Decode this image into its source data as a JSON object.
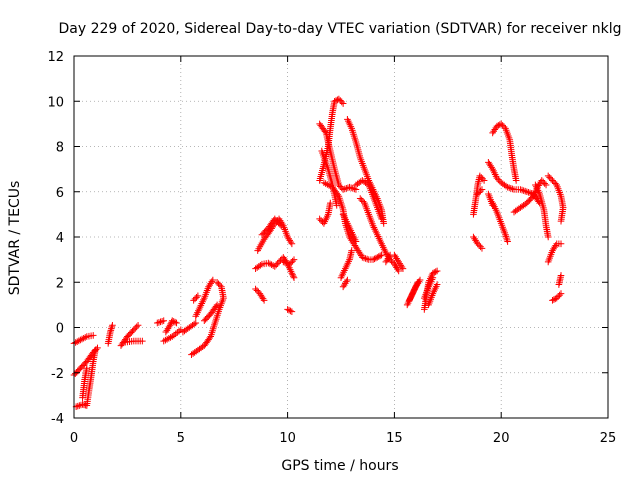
{
  "chart_data": {
    "type": "scatter",
    "title": "Day 229 of 2020, Sidereal Day-to-day VTEC variation (SDTVAR) for receiver nklg",
    "xlabel": "GPS time / hours",
    "ylabel": "SDTVAR / TECUs",
    "xlim": [
      0,
      25
    ],
    "ylim": [
      -4,
      12
    ],
    "xticks": [
      0,
      5,
      10,
      15,
      20,
      25
    ],
    "yticks": [
      -4,
      -2,
      0,
      2,
      4,
      6,
      8,
      10,
      12
    ],
    "grid": true,
    "marker": "+",
    "color": "#ff0000",
    "series": [
      {
        "name": "SDTVAR",
        "tracks": [
          [
            [
              0.0,
              -0.7
            ],
            [
              0.3,
              -0.55
            ],
            [
              0.6,
              -0.4
            ],
            [
              0.9,
              -0.35
            ]
          ],
          [
            [
              0.0,
              -2.1
            ],
            [
              0.3,
              -1.8
            ],
            [
              0.6,
              -1.5
            ],
            [
              0.9,
              -1.1
            ],
            [
              1.1,
              -0.9
            ]
          ],
          [
            [
              0.1,
              -3.5
            ],
            [
              0.4,
              -3.4
            ],
            [
              0.6,
              -3.45
            ],
            [
              0.7,
              -2.8
            ],
            [
              0.8,
              -2.2
            ],
            [
              0.9,
              -1.5
            ],
            [
              1.0,
              -1.0
            ]
          ],
          [
            [
              0.4,
              -3.1
            ],
            [
              0.5,
              -2.3
            ],
            [
              0.6,
              -1.8
            ]
          ],
          [
            [
              1.6,
              -0.7
            ],
            [
              1.7,
              -0.2
            ],
            [
              1.8,
              0.1
            ]
          ],
          [
            [
              2.2,
              -0.8
            ],
            [
              2.5,
              -0.4
            ],
            [
              2.8,
              -0.1
            ],
            [
              3.0,
              0.1
            ]
          ],
          [
            [
              2.4,
              -0.65
            ],
            [
              2.8,
              -0.6
            ],
            [
              3.2,
              -0.6
            ]
          ],
          [
            [
              3.9,
              0.2
            ],
            [
              4.2,
              0.3
            ]
          ],
          [
            [
              4.3,
              -0.2
            ],
            [
              4.5,
              0.1
            ],
            [
              4.6,
              0.3
            ],
            [
              4.8,
              0.2
            ]
          ],
          [
            [
              5.1,
              -0.2
            ],
            [
              5.4,
              0.0
            ],
            [
              5.7,
              0.2
            ]
          ],
          [
            [
              4.2,
              -0.6
            ],
            [
              4.6,
              -0.4
            ],
            [
              5.0,
              -0.1
            ]
          ],
          [
            [
              5.7,
              0.5
            ],
            [
              5.9,
              0.9
            ],
            [
              6.1,
              1.3
            ],
            [
              6.3,
              1.8
            ],
            [
              6.5,
              2.1
            ]
          ],
          [
            [
              5.6,
              1.2
            ],
            [
              5.8,
              1.4
            ]
          ],
          [
            [
              5.5,
              -1.2
            ],
            [
              5.8,
              -1.0
            ],
            [
              6.1,
              -0.8
            ],
            [
              6.4,
              -0.4
            ],
            [
              6.6,
              0.2
            ],
            [
              6.8,
              0.8
            ],
            [
              7.0,
              1.3
            ],
            [
              6.9,
              1.8
            ],
            [
              6.7,
              2.0
            ]
          ],
          [
            [
              6.1,
              0.3
            ],
            [
              6.4,
              0.6
            ],
            [
              6.7,
              1.0
            ]
          ],
          [
            [
              8.5,
              1.7
            ],
            [
              8.7,
              1.5
            ],
            [
              8.9,
              1.2
            ]
          ],
          [
            [
              8.5,
              2.6
            ],
            [
              8.8,
              2.8
            ],
            [
              9.1,
              2.85
            ],
            [
              9.4,
              2.7
            ],
            [
              9.6,
              2.9
            ],
            [
              9.8,
              3.1
            ],
            [
              10.0,
              2.8
            ],
            [
              10.2,
              2.4
            ],
            [
              10.3,
              2.2
            ]
          ],
          [
            [
              8.6,
              3.4
            ],
            [
              8.9,
              3.9
            ],
            [
              9.2,
              4.3
            ],
            [
              9.4,
              4.6
            ],
            [
              9.6,
              4.8
            ],
            [
              9.8,
              4.5
            ],
            [
              10.0,
              4.0
            ],
            [
              10.2,
              3.7
            ]
          ],
          [
            [
              8.8,
              4.1
            ],
            [
              9.1,
              4.4
            ],
            [
              9.4,
              4.8
            ],
            [
              9.7,
              4.5
            ]
          ],
          [
            [
              9.8,
              2.9
            ],
            [
              10.1,
              2.8
            ],
            [
              10.3,
              3.0
            ]
          ],
          [
            [
              10.0,
              0.8
            ],
            [
              10.2,
              0.7
            ]
          ],
          [
            [
              11.5,
              4.8
            ],
            [
              11.7,
              4.6
            ],
            [
              11.9,
              5.0
            ],
            [
              12.0,
              5.5
            ]
          ],
          [
            [
              11.5,
              6.5
            ],
            [
              11.7,
              7.2
            ],
            [
              11.9,
              8.0
            ],
            [
              12.0,
              8.8
            ],
            [
              12.1,
              9.5
            ],
            [
              12.2,
              10.0
            ],
            [
              12.4,
              10.1
            ],
            [
              12.6,
              9.9
            ]
          ],
          [
            [
              11.5,
              9.0
            ],
            [
              11.8,
              8.6
            ],
            [
              12.0,
              7.8
            ],
            [
              12.2,
              7.0
            ],
            [
              12.4,
              6.3
            ],
            [
              12.6,
              6.1
            ],
            [
              12.9,
              6.2
            ],
            [
              13.2,
              6.1
            ]
          ],
          [
            [
              11.6,
              7.8
            ],
            [
              11.9,
              7.0
            ],
            [
              12.1,
              6.3
            ],
            [
              12.3,
              5.4
            ]
          ],
          [
            [
              11.7,
              6.4
            ],
            [
              12.1,
              6.2
            ],
            [
              12.4,
              5.8
            ],
            [
              12.6,
              5.2
            ],
            [
              12.7,
              4.6
            ],
            [
              12.9,
              4.0
            ],
            [
              13.1,
              3.7
            ],
            [
              13.3,
              3.4
            ],
            [
              13.5,
              3.1
            ],
            [
              13.8,
              3.0
            ],
            [
              14.0,
              3.0
            ],
            [
              14.2,
              3.1
            ],
            [
              14.4,
              3.2
            ]
          ],
          [
            [
              12.5,
              2.2
            ],
            [
              12.7,
              2.6
            ],
            [
              12.9,
              3.0
            ],
            [
              13.0,
              3.4
            ]
          ],
          [
            [
              12.6,
              1.8
            ],
            [
              12.8,
              2.1
            ]
          ],
          [
            [
              12.6,
              5.0
            ],
            [
              12.8,
              4.6
            ],
            [
              13.0,
              4.2
            ],
            [
              13.2,
              3.8
            ]
          ],
          [
            [
              12.8,
              9.2
            ],
            [
              13.0,
              8.8
            ],
            [
              13.2,
              8.2
            ],
            [
              13.4,
              7.5
            ],
            [
              13.6,
              7.0
            ],
            [
              13.8,
              6.5
            ],
            [
              14.0,
              6.1
            ],
            [
              14.2,
              5.7
            ],
            [
              14.4,
              5.2
            ],
            [
              14.5,
              4.6
            ]
          ],
          [
            [
              13.2,
              6.3
            ],
            [
              13.5,
              6.5
            ],
            [
              13.8,
              6.3
            ],
            [
              14.0,
              5.8
            ],
            [
              14.2,
              5.3
            ],
            [
              14.4,
              4.8
            ]
          ],
          [
            [
              13.4,
              5.7
            ],
            [
              13.6,
              5.5
            ],
            [
              13.8,
              5.0
            ],
            [
              14.0,
              4.5
            ],
            [
              14.2,
              4.1
            ],
            [
              14.4,
              3.7
            ],
            [
              14.6,
              3.3
            ],
            [
              14.8,
              3.0
            ],
            [
              15.0,
              2.8
            ],
            [
              15.2,
              2.5
            ]
          ],
          [
            [
              14.6,
              2.9
            ],
            [
              14.8,
              3.2
            ]
          ],
          [
            [
              15.0,
              3.2
            ],
            [
              15.2,
              2.9
            ],
            [
              15.4,
              2.6
            ]
          ],
          [
            [
              15.6,
              1.0
            ],
            [
              15.8,
              1.4
            ],
            [
              16.0,
              1.8
            ],
            [
              16.2,
              2.1
            ]
          ],
          [
            [
              15.7,
              1.2
            ],
            [
              15.9,
              1.6
            ],
            [
              16.1,
              2.0
            ]
          ],
          [
            [
              16.4,
              0.8
            ],
            [
              16.5,
              1.4
            ],
            [
              16.6,
              2.0
            ],
            [
              16.8,
              2.4
            ],
            [
              17.0,
              2.5
            ]
          ],
          [
            [
              16.6,
              1.0
            ],
            [
              16.8,
              1.5
            ],
            [
              17.0,
              1.9
            ]
          ],
          [
            [
              16.4,
              1.3
            ],
            [
              16.6,
              1.8
            ],
            [
              16.8,
              2.2
            ]
          ],
          [
            [
              18.7,
              4.0
            ],
            [
              18.9,
              3.7
            ],
            [
              19.1,
              3.5
            ]
          ],
          [
            [
              18.7,
              5.0
            ],
            [
              18.8,
              5.6
            ],
            [
              18.9,
              6.3
            ],
            [
              19.0,
              6.7
            ],
            [
              19.2,
              6.5
            ]
          ],
          [
            [
              18.9,
              5.9
            ],
            [
              19.1,
              6.1
            ]
          ],
          [
            [
              19.4,
              7.3
            ],
            [
              19.6,
              7.0
            ],
            [
              19.8,
              6.6
            ],
            [
              20.0,
              6.4
            ],
            [
              20.3,
              6.2
            ],
            [
              20.6,
              6.1
            ],
            [
              20.9,
              6.1
            ],
            [
              21.2,
              6.0
            ],
            [
              21.5,
              5.9
            ],
            [
              21.8,
              5.5
            ]
          ],
          [
            [
              19.6,
              8.6
            ],
            [
              19.8,
              8.9
            ],
            [
              20.0,
              9.0
            ],
            [
              20.2,
              8.8
            ],
            [
              20.4,
              8.3
            ],
            [
              20.5,
              7.6
            ],
            [
              20.6,
              7.0
            ],
            [
              20.7,
              6.5
            ]
          ],
          [
            [
              19.6,
              5.5
            ],
            [
              19.8,
              5.1
            ],
            [
              20.0,
              4.6
            ],
            [
              20.2,
              4.1
            ],
            [
              20.3,
              3.8
            ]
          ],
          [
            [
              19.4,
              5.9
            ],
            [
              19.6,
              5.4
            ]
          ],
          [
            [
              20.6,
              5.1
            ],
            [
              20.9,
              5.3
            ],
            [
              21.2,
              5.5
            ],
            [
              21.5,
              5.8
            ],
            [
              21.7,
              6.2
            ],
            [
              21.9,
              6.5
            ],
            [
              22.1,
              6.3
            ]
          ],
          [
            [
              21.6,
              6.3
            ],
            [
              21.8,
              5.9
            ],
            [
              22.0,
              5.2
            ],
            [
              22.1,
              4.5
            ],
            [
              22.2,
              4.0
            ]
          ],
          [
            [
              22.2,
              6.7
            ],
            [
              22.4,
              6.5
            ],
            [
              22.6,
              6.3
            ],
            [
              22.8,
              5.8
            ],
            [
              22.9,
              5.3
            ],
            [
              22.8,
              4.7
            ]
          ],
          [
            [
              22.2,
              2.9
            ],
            [
              22.4,
              3.4
            ],
            [
              22.6,
              3.7
            ],
            [
              22.8,
              3.7
            ]
          ],
          [
            [
              22.4,
              1.2
            ],
            [
              22.6,
              1.3
            ],
            [
              22.8,
              1.5
            ]
          ],
          [
            [
              22.7,
              1.9
            ],
            [
              22.8,
              2.3
            ]
          ]
        ]
      }
    ]
  }
}
